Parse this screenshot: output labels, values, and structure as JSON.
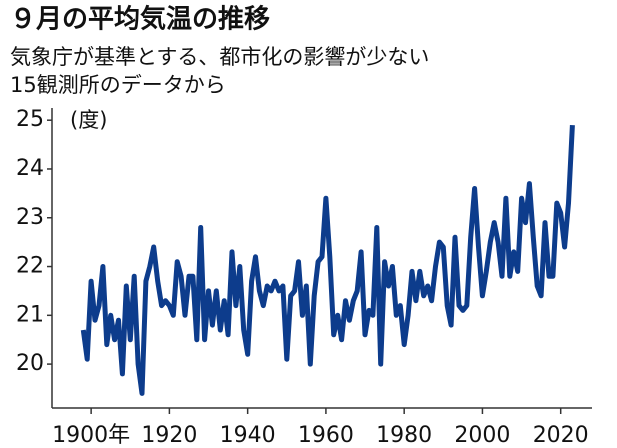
{
  "chart_data": {
    "type": "line",
    "title": "９月の平均気温の推移",
    "subtitle": [
      "気象庁が基準とする、都市化の影響が少ない",
      "15観測所のデータから"
    ],
    "y_unit_label": "(度)",
    "color": "#0d3c8c",
    "x": [
      1898,
      1899,
      1900,
      1901,
      1902,
      1903,
      1904,
      1905,
      1906,
      1907,
      1908,
      1909,
      1910,
      1911,
      1912,
      1913,
      1914,
      1915,
      1916,
      1917,
      1918,
      1919,
      1920,
      1921,
      1922,
      1923,
      1924,
      1925,
      1926,
      1927,
      1928,
      1929,
      1930,
      1931,
      1932,
      1933,
      1934,
      1935,
      1936,
      1937,
      1938,
      1939,
      1940,
      1941,
      1942,
      1943,
      1944,
      1945,
      1946,
      1947,
      1948,
      1949,
      1950,
      1951,
      1952,
      1953,
      1954,
      1955,
      1956,
      1957,
      1958,
      1959,
      1960,
      1961,
      1962,
      1963,
      1964,
      1965,
      1966,
      1967,
      1968,
      1969,
      1970,
      1971,
      1972,
      1973,
      1974,
      1975,
      1976,
      1977,
      1978,
      1979,
      1980,
      1981,
      1982,
      1983,
      1984,
      1985,
      1986,
      1987,
      1988,
      1989,
      1990,
      1991,
      1992,
      1993,
      1994,
      1995,
      1996,
      1997,
      1998,
      1999,
      2000,
      2001,
      2002,
      2003,
      2004,
      2005,
      2006,
      2007,
      2008,
      2009,
      2010,
      2011,
      2012,
      2013,
      2014,
      2015,
      2016,
      2017,
      2018,
      2019,
      2020,
      2021,
      2022,
      2023
    ],
    "values": [
      20.7,
      20.1,
      21.7,
      20.9,
      21.2,
      22.0,
      20.4,
      21.0,
      20.5,
      20.9,
      19.8,
      21.6,
      20.5,
      21.8,
      20.0,
      19.4,
      21.7,
      22.0,
      22.4,
      21.7,
      21.2,
      21.3,
      21.2,
      21.0,
      22.1,
      21.8,
      21.0,
      21.8,
      21.8,
      20.5,
      22.8,
      20.5,
      21.5,
      20.8,
      21.5,
      20.7,
      21.3,
      20.6,
      22.3,
      21.2,
      22.0,
      20.7,
      20.2,
      21.7,
      22.2,
      21.5,
      21.2,
      21.6,
      21.5,
      21.7,
      21.5,
      21.6,
      20.1,
      21.4,
      21.5,
      22.1,
      21.0,
      21.6,
      20.0,
      21.4,
      22.1,
      22.2,
      23.4,
      22.2,
      20.6,
      21.0,
      20.5,
      21.3,
      20.9,
      21.3,
      21.5,
      22.3,
      20.6,
      21.1,
      21.0,
      22.8,
      20.0,
      22.1,
      21.6,
      22.0,
      21.0,
      21.2,
      20.4,
      21.0,
      21.9,
      21.3,
      21.9,
      21.4,
      21.6,
      21.3,
      22.0,
      22.5,
      22.4,
      21.2,
      20.8,
      22.6,
      21.2,
      21.1,
      21.2,
      22.6,
      23.6,
      22.4,
      21.4,
      21.9,
      22.5,
      22.9,
      22.5,
      21.8,
      23.4,
      21.8,
      22.3,
      21.9,
      23.4,
      22.9,
      23.7,
      22.6,
      21.6,
      21.4,
      22.9,
      21.8,
      21.8,
      23.3,
      23.1,
      22.4,
      23.3,
      24.9
    ],
    "xlim": [
      1890,
      2028
    ],
    "xticks": [
      {
        "value": 1900,
        "label": "1900年"
      },
      1920,
      1940,
      1960,
      1980,
      2000,
      2020
    ],
    "ylim": [
      19.1,
      25.25
    ],
    "yticks": [
      20,
      21,
      22,
      23,
      24,
      25
    ],
    "grid": false
  }
}
